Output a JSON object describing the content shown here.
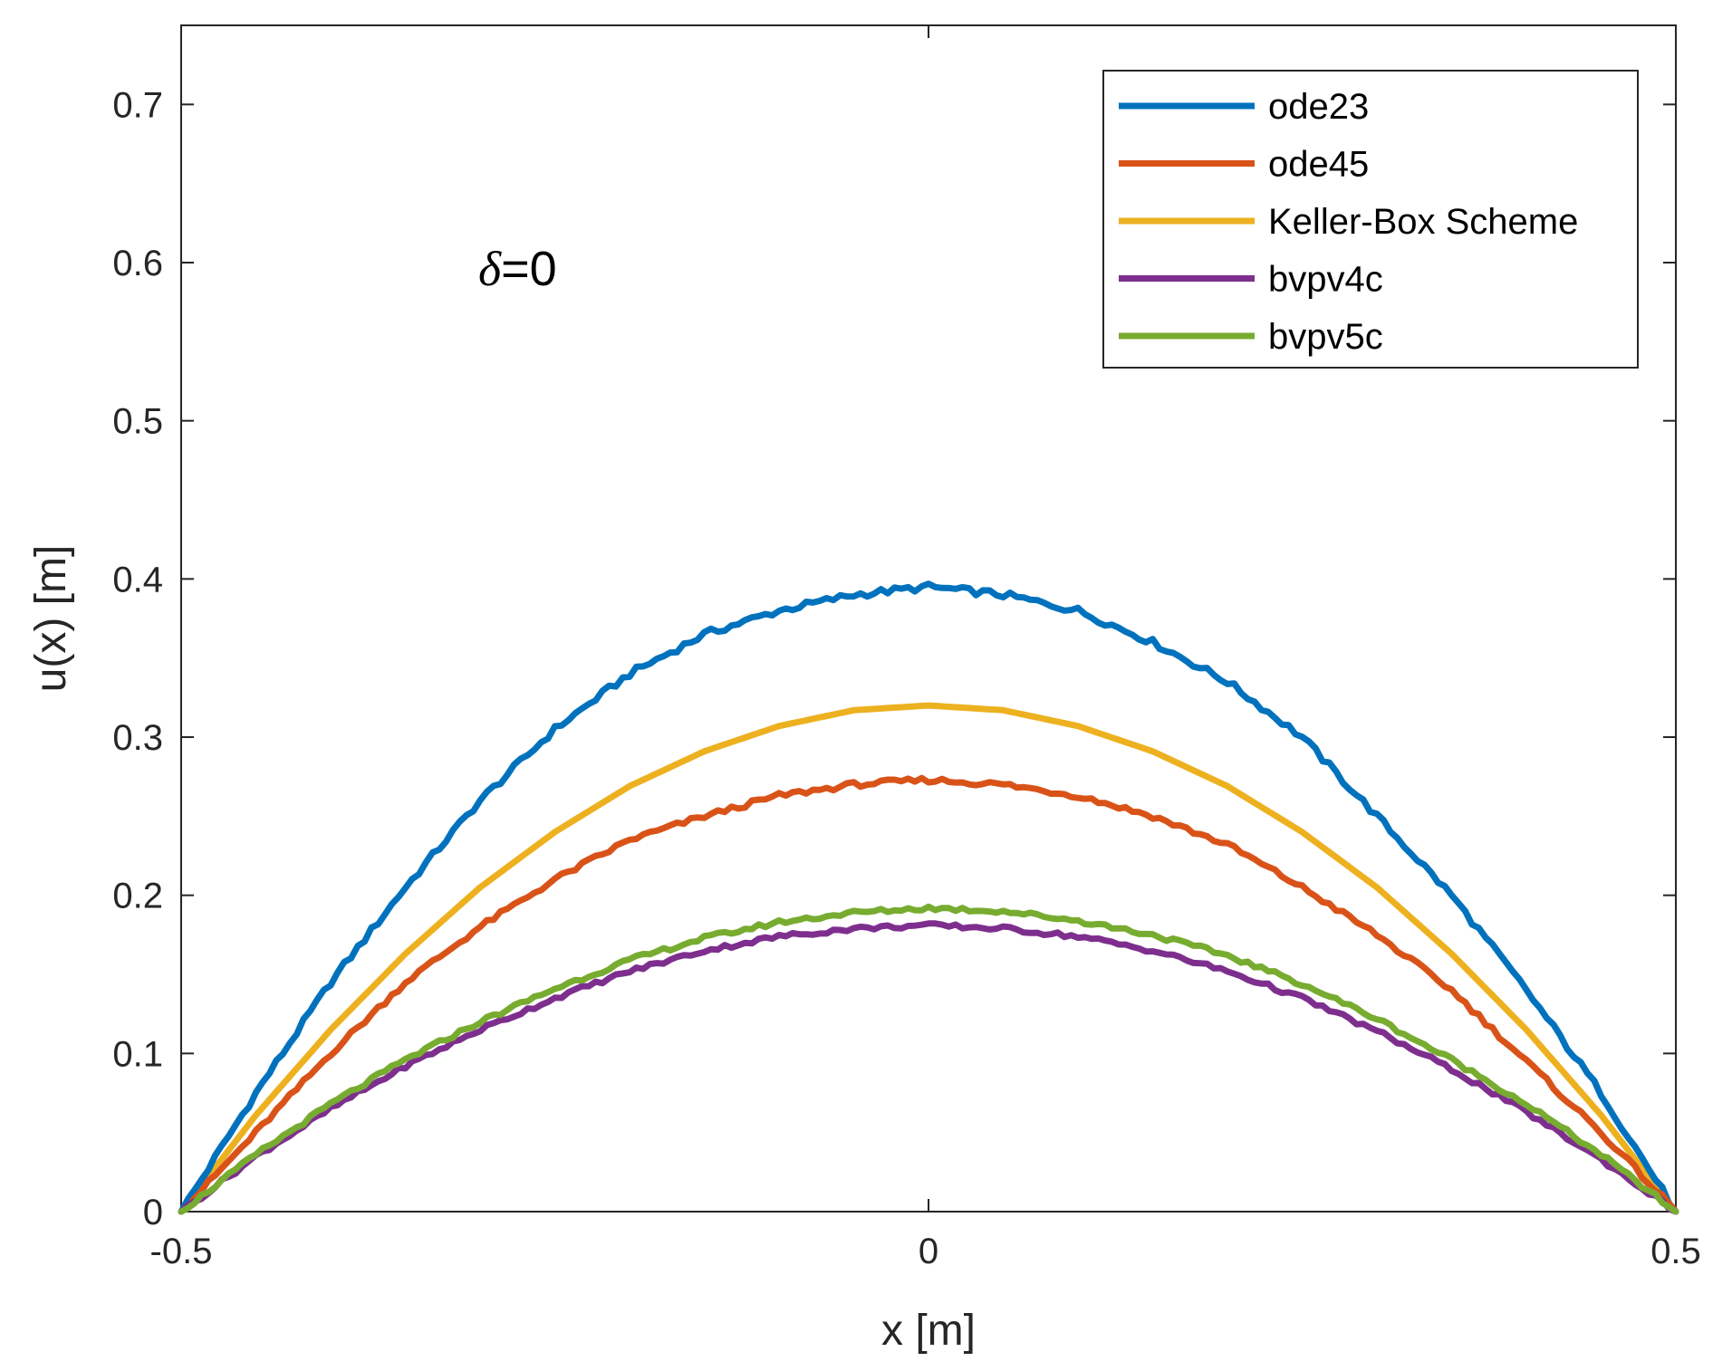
{
  "chart_data": {
    "type": "line",
    "title": "",
    "xlabel": "x [m]",
    "ylabel": "u(x) [m]",
    "xlim": [
      -0.5,
      0.5
    ],
    "ylim": [
      0,
      0.75
    ],
    "xticks": [
      -0.5,
      0,
      0.5
    ],
    "xtick_labels": [
      "-0.5",
      "0",
      "0.5"
    ],
    "yticks": [
      0,
      0.1,
      0.2,
      0.3,
      0.4,
      0.5,
      0.6,
      0.7
    ],
    "ytick_labels": [
      "0",
      "0.1",
      "0.2",
      "0.3",
      "0.4",
      "0.5",
      "0.6",
      "0.7"
    ],
    "grid": false,
    "legend_position": "top-right",
    "annotation": {
      "symbol": "δ",
      "text": "=0"
    },
    "x": [
      -0.5,
      -0.45,
      -0.4,
      -0.35,
      -0.3,
      -0.25,
      -0.2,
      -0.15,
      -0.1,
      -0.05,
      0,
      0.05,
      0.1,
      0.15,
      0.2,
      0.25,
      0.3,
      0.35,
      0.4,
      0.45,
      0.5
    ],
    "series": [
      {
        "name": "ode23",
        "color": "#0072BD",
        "values": [
          0,
          0.075,
          0.145,
          0.205,
          0.26,
          0.305,
          0.34,
          0.365,
          0.38,
          0.39,
          0.395,
          0.39,
          0.38,
          0.36,
          0.335,
          0.3,
          0.25,
          0.2,
          0.14,
          0.075,
          0
        ]
      },
      {
        "name": "ode45",
        "color": "#D95319",
        "values": [
          0,
          0.05,
          0.1,
          0.145,
          0.18,
          0.21,
          0.235,
          0.25,
          0.263,
          0.27,
          0.273,
          0.27,
          0.263,
          0.25,
          0.232,
          0.205,
          0.175,
          0.14,
          0.095,
          0.05,
          0
        ]
      },
      {
        "name": "Keller-Box Scheme",
        "color": "#EDB120",
        "values": [
          0,
          0.061,
          0.115,
          0.163,
          0.205,
          0.24,
          0.269,
          0.291,
          0.307,
          0.317,
          0.32,
          0.317,
          0.307,
          0.291,
          0.269,
          0.24,
          0.205,
          0.163,
          0.115,
          0.061,
          0
        ]
      },
      {
        "name": "bvpv4c",
        "color": "#7E2F8E",
        "values": [
          0,
          0.035,
          0.065,
          0.092,
          0.115,
          0.135,
          0.152,
          0.165,
          0.174,
          0.179,
          0.181,
          0.179,
          0.174,
          0.165,
          0.152,
          0.135,
          0.114,
          0.09,
          0.063,
          0.033,
          0
        ]
      },
      {
        "name": "bvpv5c",
        "color": "#77AC30",
        "values": [
          0,
          0.036,
          0.068,
          0.096,
          0.12,
          0.141,
          0.159,
          0.173,
          0.183,
          0.189,
          0.192,
          0.19,
          0.184,
          0.175,
          0.162,
          0.144,
          0.122,
          0.096,
          0.068,
          0.036,
          0
        ]
      }
    ]
  }
}
